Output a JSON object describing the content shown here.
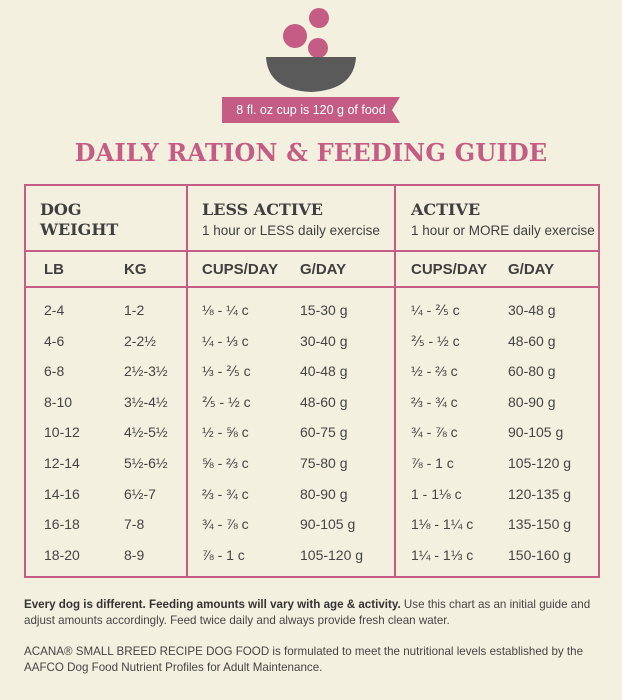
{
  "header": {
    "serving_note": "8 fl. oz cup is 120 g of food",
    "title": "DAILY RATION & FEEDING GUIDE"
  },
  "colors": {
    "accent": "#c45c84",
    "bowl": "#5a5a5a",
    "background": "#f4f0df"
  },
  "table": {
    "dog_weight_label": "DOG WEIGHT",
    "less_active": {
      "title": "LESS ACTIVE",
      "subtitle": "1 hour or LESS daily exercise"
    },
    "active": {
      "title": "ACTIVE",
      "subtitle": "1 hour or MORE daily exercise"
    },
    "columns": [
      "LB",
      "KG",
      "CUPS/DAY",
      "G/DAY",
      "CUPS/DAY",
      "G/DAY"
    ],
    "rows": [
      [
        "2-4",
        "1-2",
        "⅛ - ¼ c",
        "15-30 g",
        "¼ - ⅖ c",
        "30-48 g"
      ],
      [
        "4-6",
        "2-2½",
        "¼ - ⅓ c",
        "30-40 g",
        "⅖ - ½ c",
        "48-60 g"
      ],
      [
        "6-8",
        "2½-3½",
        "⅓ - ⅖ c",
        "40-48 g",
        "½ - ⅔ c",
        "60-80 g"
      ],
      [
        "8-10",
        "3½-4½",
        "⅖ - ½ c",
        "48-60 g",
        "⅔ - ¾ c",
        "80-90 g"
      ],
      [
        "10-12",
        "4½-5½",
        "½ - ⅝ c",
        "60-75 g",
        "¾ - ⅞ c",
        "90-105 g"
      ],
      [
        "12-14",
        "5½-6½",
        "⅝ - ⅔ c",
        "75-80 g",
        "⅞ - 1 c",
        "105-120 g"
      ],
      [
        "14-16",
        "6½-7",
        "⅔ - ¾ c",
        "80-90 g",
        "1 - 1⅛ c",
        "120-135 g"
      ],
      [
        "16-18",
        "7-8",
        "¾ - ⅞ c",
        "90-105 g",
        "1⅛ - 1¼ c",
        "135-150 g"
      ],
      [
        "18-20",
        "8-9",
        "⅞ - 1 c",
        "105-120 g",
        "1¼ - 1⅓ c",
        "150-160 g"
      ]
    ]
  },
  "footer": {
    "note_bold": "Every dog is different. Feeding amounts will vary with age & activity.",
    "note_rest": " Use this chart as an initial guide and adjust amounts accordingly. Feed twice daily and always provide fresh clean water.",
    "aafco": "ACANA® SMALL BREED RECIPE DOG FOOD is formulated to meet the nutritional levels established by the AAFCO Dog Food Nutrient Profiles for Adult Maintenance."
  }
}
